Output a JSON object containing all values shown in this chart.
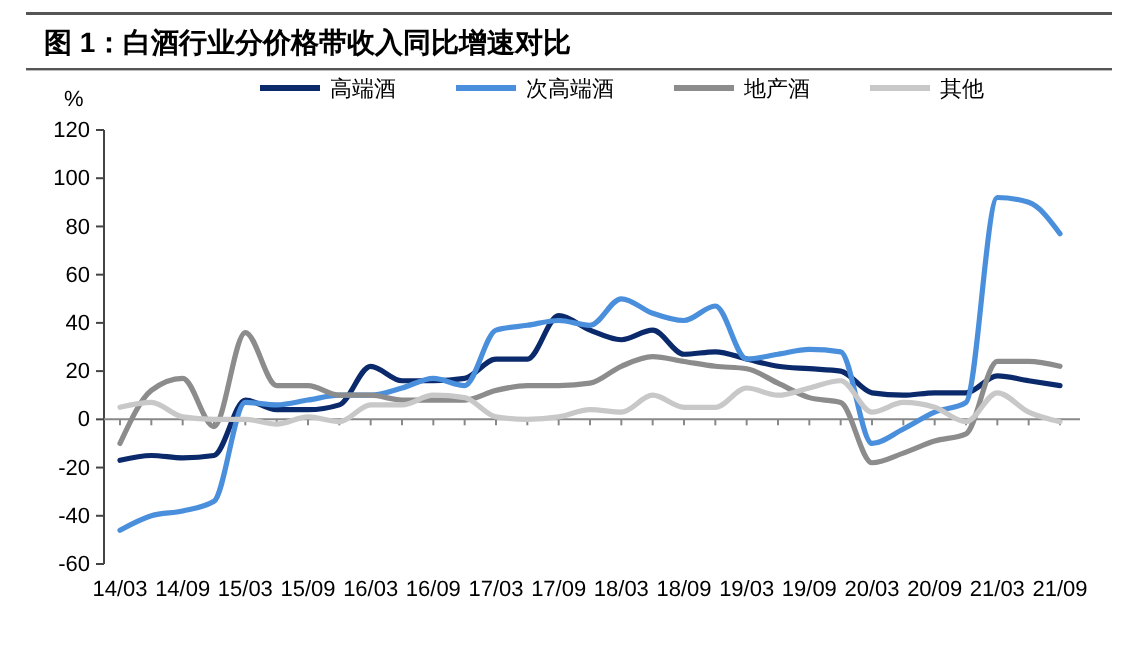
{
  "chart_data": {
    "type": "line",
    "title": "图 1：白酒行业分价格带收入同比增速对比",
    "ylabel": "%",
    "categories": [
      "14/03",
      null,
      "14/09",
      null,
      "15/03",
      null,
      "15/09",
      null,
      "16/03",
      null,
      "16/09",
      null,
      "17/03",
      null,
      "17/09",
      null,
      "18/03",
      null,
      "18/09",
      null,
      "19/03",
      null,
      "19/09",
      null,
      "20/03",
      null,
      "20/09",
      null,
      "21/03",
      null,
      "21/09"
    ],
    "series": [
      {
        "name": "高端酒",
        "color": "#0b2a6b",
        "values": [
          -17,
          -15,
          -16,
          -15,
          8,
          4,
          4,
          6,
          22,
          16,
          16,
          17,
          25,
          25,
          43,
          37,
          33,
          37,
          27,
          28,
          25,
          22,
          21,
          20,
          11,
          10,
          11,
          11,
          18,
          16,
          14
        ]
      },
      {
        "name": "次高端酒",
        "color": "#4a8fdc",
        "values": [
          -46,
          -40,
          -38,
          -34,
          7,
          6,
          8,
          10,
          10,
          13,
          17,
          14,
          37,
          39,
          41,
          39,
          50,
          44,
          41,
          47,
          25,
          27,
          29,
          28,
          -10,
          -4,
          3,
          7,
          92,
          90,
          77
        ]
      },
      {
        "name": "地产酒",
        "color": "#8c8c8c",
        "values": [
          -10,
          12,
          17,
          -3,
          36,
          14,
          14,
          10,
          10,
          8,
          8,
          8,
          12,
          14,
          14,
          15,
          22,
          26,
          24,
          22,
          21,
          15,
          9,
          7,
          -18,
          -14,
          -9,
          -6,
          24,
          24,
          22
        ]
      },
      {
        "name": "其他",
        "color": "#c8c8c8",
        "values": [
          5,
          7,
          1,
          0,
          0,
          -2,
          1,
          -1,
          6,
          6,
          10,
          9,
          1,
          0,
          1,
          4,
          3,
          10,
          5,
          5,
          13,
          10,
          13,
          16,
          3,
          7,
          5,
          -1,
          11,
          3,
          -1
        ]
      }
    ],
    "ylim": [
      -60,
      120
    ],
    "yticks": [
      -60,
      -40,
      -20,
      0,
      20,
      40,
      60,
      80,
      100,
      120
    ],
    "legend": "top",
    "marker": "none",
    "line_style": "solid"
  }
}
